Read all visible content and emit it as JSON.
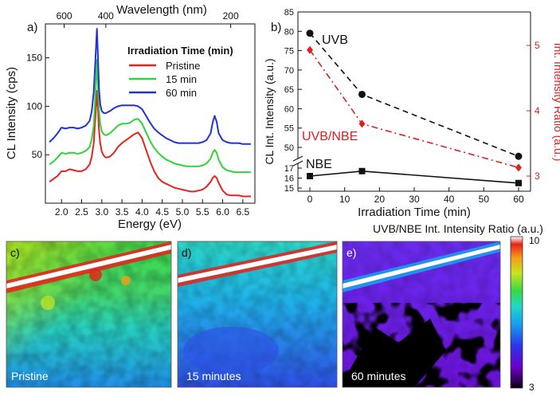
{
  "chart_data": [
    {
      "panel": "a)",
      "type": "line",
      "xlabel": "Energy (eV)",
      "ylabel": "CL Intensity (cps)",
      "top_xlabel": "Wavelength (nm)",
      "xlim": [
        1.6,
        6.8
      ],
      "ylim": [
        0,
        185
      ],
      "x_ticks": [
        "2.0",
        "2.5",
        "3.0",
        "3.5",
        "4.0",
        "4.5",
        "5.0",
        "5.5",
        "6.0",
        "6.5"
      ],
      "y_ticks": [
        "50",
        "100",
        "150"
      ],
      "top_ticks": [
        "600",
        "400",
        "200"
      ],
      "legend_title": "Irradiation Time (min)",
      "series": [
        {
          "name": "Pristine",
          "color": "#e8221c",
          "x": [
            1.7,
            1.8,
            1.9,
            2.0,
            2.1,
            2.2,
            2.3,
            2.4,
            2.5,
            2.6,
            2.7,
            2.75,
            2.8,
            2.85,
            2.88,
            2.9,
            2.93,
            2.96,
            3.0,
            3.05,
            3.1,
            3.2,
            3.3,
            3.4,
            3.5,
            3.6,
            3.7,
            3.8,
            3.9,
            4.0,
            4.1,
            4.2,
            4.3,
            4.4,
            4.5,
            4.6,
            4.7,
            4.8,
            4.9,
            5.0,
            5.1,
            5.2,
            5.3,
            5.4,
            5.5,
            5.6,
            5.7,
            5.75,
            5.8,
            5.85,
            5.9,
            6.0,
            6.1,
            6.2,
            6.3,
            6.4,
            6.5,
            6.6,
            6.7
          ],
          "y": [
            22,
            25,
            28,
            33,
            33,
            35,
            34,
            33,
            33,
            35,
            40,
            48,
            62,
            95,
            116,
            100,
            75,
            62,
            53,
            49,
            47,
            48,
            52,
            58,
            62,
            65,
            68,
            71,
            73,
            67,
            55,
            43,
            33,
            26,
            22,
            20,
            18,
            16,
            15,
            14,
            13,
            12,
            12,
            13,
            14,
            17,
            22,
            26,
            28,
            26,
            21,
            13,
            9,
            8,
            8,
            8,
            7,
            7,
            7
          ]
        },
        {
          "name": "15 min",
          "color": "#2fd43a",
          "x": [
            1.7,
            1.8,
            1.9,
            2.0,
            2.1,
            2.2,
            2.3,
            2.4,
            2.5,
            2.6,
            2.7,
            2.75,
            2.8,
            2.85,
            2.88,
            2.9,
            2.93,
            2.96,
            3.0,
            3.05,
            3.1,
            3.2,
            3.3,
            3.4,
            3.5,
            3.6,
            3.7,
            3.8,
            3.9,
            4.0,
            4.1,
            4.2,
            4.3,
            4.4,
            4.5,
            4.6,
            4.7,
            4.8,
            4.9,
            5.0,
            5.1,
            5.2,
            5.3,
            5.4,
            5.5,
            5.6,
            5.7,
            5.75,
            5.8,
            5.85,
            5.9,
            6.0,
            6.1,
            6.2,
            6.3,
            6.4,
            6.5,
            6.6,
            6.7
          ],
          "y": [
            40,
            43,
            47,
            52,
            51,
            52,
            52,
            51,
            52,
            54,
            58,
            66,
            80,
            120,
            148,
            125,
            95,
            82,
            74,
            71,
            70,
            72,
            76,
            80,
            82,
            82,
            83,
            86,
            87,
            82,
            73,
            64,
            57,
            52,
            48,
            45,
            43,
            41,
            40,
            39,
            38,
            38,
            38,
            38,
            39,
            41,
            46,
            52,
            55,
            52,
            45,
            37,
            34,
            33,
            32,
            32,
            32,
            32,
            32
          ]
        },
        {
          "name": "60 min",
          "color": "#1f33d6",
          "x": [
            1.7,
            1.8,
            1.9,
            2.0,
            2.1,
            2.2,
            2.3,
            2.4,
            2.5,
            2.6,
            2.7,
            2.75,
            2.8,
            2.85,
            2.88,
            2.9,
            2.93,
            2.96,
            3.0,
            3.05,
            3.1,
            3.2,
            3.3,
            3.4,
            3.5,
            3.6,
            3.7,
            3.8,
            3.9,
            4.0,
            4.1,
            4.2,
            4.3,
            4.4,
            4.5,
            4.6,
            4.7,
            4.8,
            4.9,
            5.0,
            5.1,
            5.2,
            5.3,
            5.4,
            5.5,
            5.6,
            5.7,
            5.75,
            5.8,
            5.85,
            5.9,
            6.0,
            6.1,
            6.2,
            6.3,
            6.4,
            6.5,
            6.6,
            6.7
          ],
          "y": [
            63,
            67,
            72,
            78,
            77,
            78,
            78,
            77,
            78,
            80,
            85,
            95,
            115,
            155,
            180,
            155,
            118,
            102,
            95,
            93,
            93,
            95,
            98,
            100,
            101,
            101,
            101,
            101,
            100,
            97,
            90,
            83,
            77,
            73,
            70,
            67,
            65,
            63,
            62,
            62,
            62,
            62,
            62,
            62,
            63,
            65,
            72,
            83,
            90,
            84,
            72,
            65,
            63,
            62,
            62,
            62,
            61,
            61,
            61
          ]
        }
      ]
    },
    {
      "panel": "b)",
      "type": "line",
      "xlabel": "Irradiation Time (min)",
      "ylabel": "CL Int. Intensity (a.u.)",
      "y2label": "Int. Intensity Ratio (a.u.)",
      "x_ticks": [
        "0",
        "10",
        "20",
        "30",
        "40",
        "50",
        "60"
      ],
      "y_ticks_upper": [
        "50",
        "55",
        "60",
        "65",
        "70",
        "75",
        "80",
        "85"
      ],
      "y_ticks_lower": [
        "15",
        "16",
        "17"
      ],
      "y2_ticks": [
        "3",
        "4",
        "5"
      ],
      "x": [
        0,
        15,
        60
      ],
      "series": [
        {
          "name": "UVB",
          "label": "UVB",
          "color": "#111111",
          "axis": "left",
          "marker": "circle",
          "style": "dashed",
          "values": [
            79.5,
            63.7,
            47.7
          ]
        },
        {
          "name": "UVB/NBE",
          "label": "UVB/NBE",
          "color": "#dd1f1f",
          "axis": "right",
          "marker": "diamond",
          "style": "dash-dot",
          "values": [
            4.93,
            3.8,
            3.13
          ]
        },
        {
          "name": "NBE",
          "label": "NBE",
          "color": "#111111",
          "axis": "left",
          "marker": "square",
          "style": "solid",
          "values": [
            16.2,
            16.7,
            15.5
          ]
        }
      ]
    },
    {
      "type": "heatmap",
      "title": "UVB/NBE Int. Intensity Ratio (a.u.)",
      "colorbar_range": [
        3,
        10
      ],
      "colorbar_max_label": "10",
      "colorbar_min_label": "3",
      "panels": [
        {
          "panel": "c)",
          "caption": "Pristine"
        },
        {
          "panel": "d)",
          "caption": "15 minutes"
        },
        {
          "panel": "e)",
          "caption": "60 minutes"
        }
      ]
    }
  ]
}
